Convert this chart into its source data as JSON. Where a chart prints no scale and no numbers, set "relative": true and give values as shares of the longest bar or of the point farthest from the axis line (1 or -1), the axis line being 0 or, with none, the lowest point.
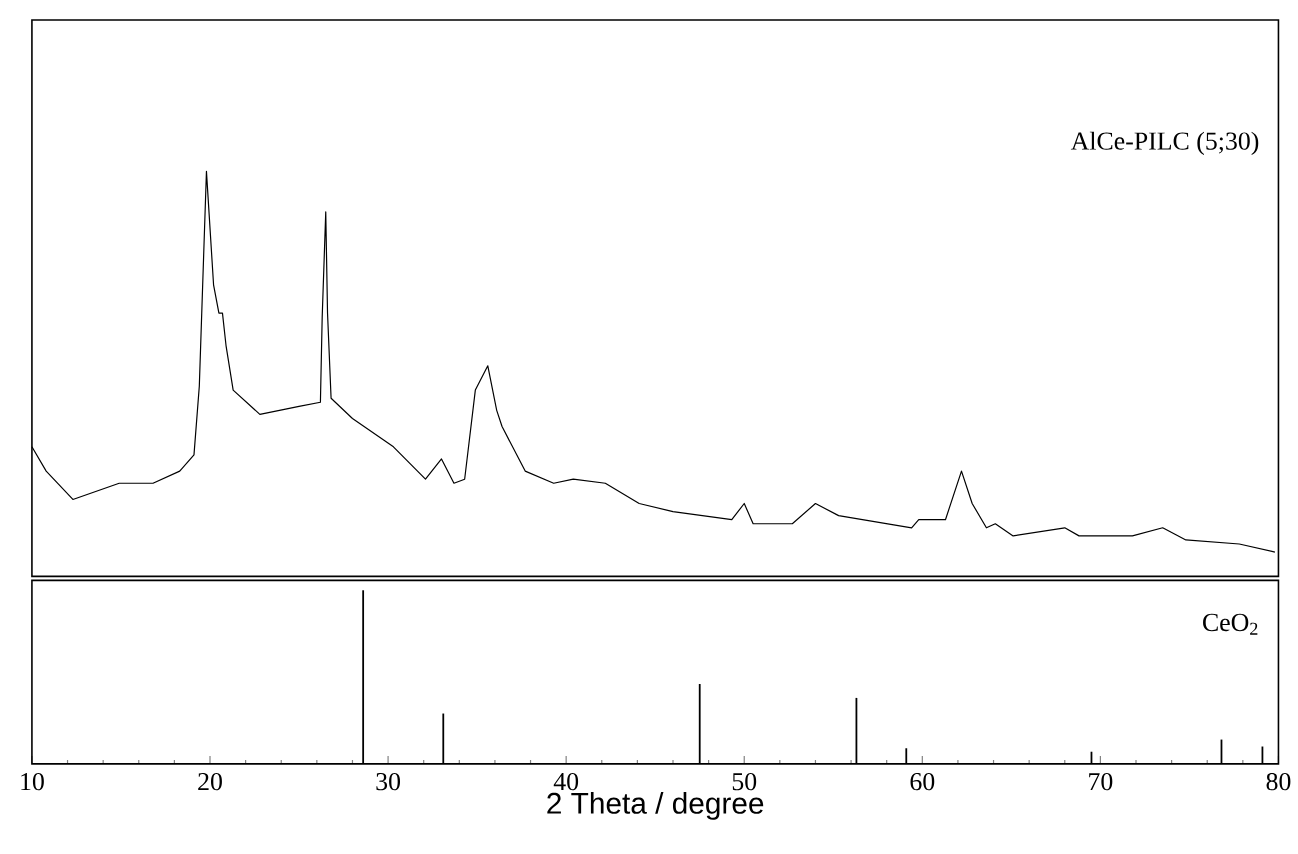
{
  "chart_data": [
    {
      "type": "line",
      "relative": true,
      "xlim": [
        10,
        80
      ],
      "tick_labels": false,
      "series": [
        {
          "name": "AlCe-PILC (5;30)",
          "color": "#000000",
          "x": [
            10.0,
            10.8,
            12.3,
            14.9,
            16.8,
            18.3,
            19.1,
            19.4,
            19.8,
            20.2,
            20.5,
            20.7,
            20.9,
            21.3,
            22.8,
            25.0,
            26.2,
            26.3,
            26.5,
            26.6,
            26.8,
            28.0,
            30.3,
            32.1,
            33.0,
            33.7,
            34.3,
            34.9,
            35.6,
            36.1,
            36.4,
            37.7,
            39.3,
            40.4,
            42.2,
            44.1,
            46.0,
            49.3,
            50.0,
            50.5,
            52.7,
            54.0,
            55.3,
            59.4,
            59.8,
            61.3,
            62.2,
            62.8,
            63.6,
            64.1,
            65.1,
            68.0,
            68.8,
            71.8,
            73.5,
            74.8,
            77.8,
            79.8
          ],
          "values": [
            0.32,
            0.26,
            0.19,
            0.23,
            0.23,
            0.26,
            0.3,
            0.47,
            1.0,
            0.72,
            0.65,
            0.65,
            0.57,
            0.46,
            0.4,
            0.42,
            0.43,
            0.64,
            0.9,
            0.65,
            0.44,
            0.39,
            0.32,
            0.24,
            0.29,
            0.23,
            0.24,
            0.46,
            0.52,
            0.41,
            0.37,
            0.26,
            0.23,
            0.24,
            0.23,
            0.18,
            0.16,
            0.14,
            0.18,
            0.13,
            0.13,
            0.18,
            0.15,
            0.12,
            0.14,
            0.14,
            0.26,
            0.18,
            0.12,
            0.13,
            0.1,
            0.12,
            0.1,
            0.1,
            0.12,
            0.09,
            0.08,
            0.06
          ]
        }
      ]
    },
    {
      "type": "bar",
      "relative": true,
      "xlim": [
        10,
        80
      ],
      "xticks": [
        10,
        20,
        30,
        40,
        50,
        60,
        70,
        80
      ],
      "tick_labels": "x",
      "xlabel": "2 Theta / degree",
      "series": [
        {
          "name": "CeO$_{2}$",
          "color": "#000000",
          "x": [
            28.6,
            33.1,
            47.5,
            56.3,
            59.1,
            69.5,
            76.8,
            79.1
          ],
          "values": [
            1.0,
            0.29,
            0.46,
            0.38,
            0.09,
            0.07,
            0.14,
            0.1
          ]
        }
      ]
    }
  ]
}
